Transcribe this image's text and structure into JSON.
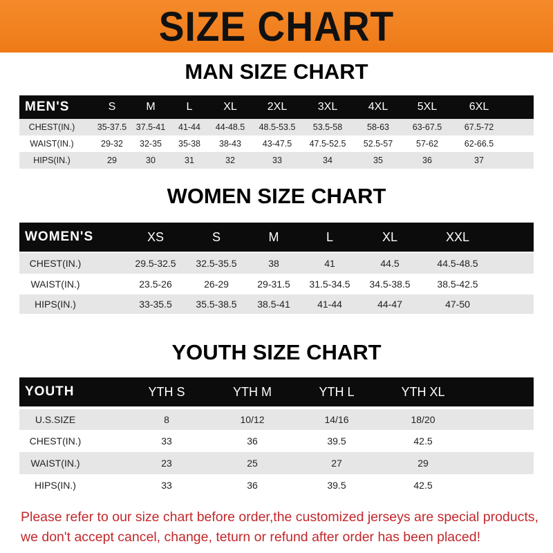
{
  "banner_title": "SIZE CHART",
  "men": {
    "title": "MAN SIZE CHART",
    "header": [
      "MEN'S",
      "S",
      "M",
      "L",
      "XL",
      "2XL",
      "3XL",
      "4XL",
      "5XL",
      "6XL"
    ],
    "rows": [
      [
        "CHEST(IN.)",
        "35-37.5",
        "37.5-41",
        "41-44",
        "44-48.5",
        "48.5-53.5",
        "53.5-58",
        "58-63",
        "63-67.5",
        "67.5-72"
      ],
      [
        "WAIST(IN.)",
        "29-32",
        "32-35",
        "35-38",
        "38-43",
        "43-47.5",
        "47.5-52.5",
        "52.5-57",
        "57-62",
        "62-66.5"
      ],
      [
        "HIPS(IN.)",
        "29",
        "30",
        "31",
        "32",
        "33",
        "34",
        "35",
        "36",
        "37"
      ]
    ]
  },
  "women": {
    "title": "WOMEN SIZE CHART",
    "header": [
      "WOMEN'S",
      "XS",
      "S",
      "M",
      "L",
      "XL",
      "XXL"
    ],
    "rows": [
      [
        "CHEST(IN.)",
        "29.5-32.5",
        "32.5-35.5",
        "38",
        "41",
        "44.5",
        "44.5-48.5"
      ],
      [
        "WAIST(IN.)",
        "23.5-26",
        "26-29",
        "29-31.5",
        "31.5-34.5",
        "34.5-38.5",
        "38.5-42.5"
      ],
      [
        "HIPS(IN.)",
        "33-35.5",
        "35.5-38.5",
        "38.5-41",
        "41-44",
        "44-47",
        "47-50"
      ]
    ]
  },
  "youth": {
    "title": "YOUTH SIZE CHART",
    "header": [
      "YOUTH",
      "YTH S",
      "YTH M",
      "YTH L",
      "YTH XL"
    ],
    "rows": [
      [
        "U.S.SIZE",
        "8",
        "10/12",
        "14/16",
        "18/20"
      ],
      [
        "CHEST(IN.)",
        "33",
        "36",
        "39.5",
        "42.5"
      ],
      [
        "WAIST(IN.)",
        "23",
        "25",
        "27",
        "29"
      ],
      [
        "HIPS(IN.)",
        "33",
        "36",
        "39.5",
        "42.5"
      ]
    ]
  },
  "footer": {
    "line1": "Please refer to our size chart before order,the customized jerseys are special products,",
    "line2": "we don't accept cancel, change, teturn or refund after order has been placed!"
  },
  "colors": {
    "banner": "#ee7a17",
    "header_row": "#0c0c0c",
    "stripe": "#e6e6e6",
    "notice": "#c3272b"
  }
}
